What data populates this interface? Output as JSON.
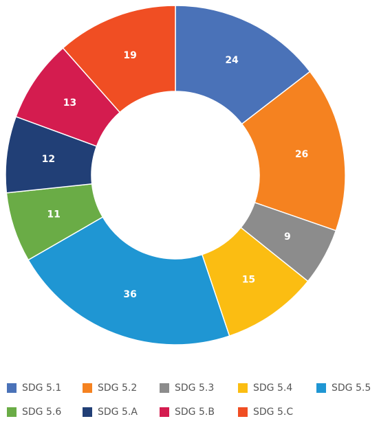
{
  "chart_data": {
    "type": "donut",
    "categories": [
      "SDG 5.1",
      "SDG 5.2",
      "SDG 5.3",
      "SDG 5.4",
      "SDG 5.5",
      "SDG 5.6",
      "SDG 5.A",
      "SDG 5.B",
      "SDG 5.C"
    ],
    "values": [
      24,
      26,
      9,
      15,
      36,
      11,
      12,
      13,
      19
    ],
    "colors": [
      "#4a72b8",
      "#f58220",
      "#8c8c8c",
      "#fbbd12",
      "#1f96d3",
      "#6aac46",
      "#213f76",
      "#d41c4f",
      "#f04e23"
    ],
    "legend": "bottom"
  }
}
